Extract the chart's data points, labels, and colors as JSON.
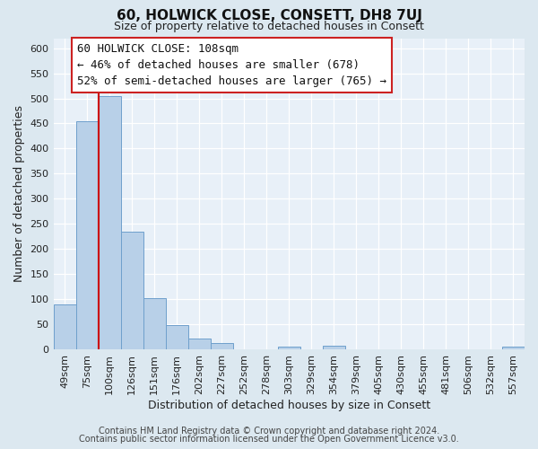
{
  "title": "60, HOLWICK CLOSE, CONSETT, DH8 7UJ",
  "subtitle": "Size of property relative to detached houses in Consett",
  "xlabel": "Distribution of detached houses by size in Consett",
  "ylabel": "Number of detached properties",
  "bin_labels": [
    "49sqm",
    "75sqm",
    "100sqm",
    "126sqm",
    "151sqm",
    "176sqm",
    "202sqm",
    "227sqm",
    "252sqm",
    "278sqm",
    "303sqm",
    "329sqm",
    "354sqm",
    "379sqm",
    "405sqm",
    "430sqm",
    "455sqm",
    "481sqm",
    "506sqm",
    "532sqm",
    "557sqm"
  ],
  "bar_heights": [
    90,
    455,
    505,
    235,
    102,
    48,
    22,
    12,
    0,
    0,
    5,
    0,
    7,
    0,
    0,
    0,
    0,
    0,
    0,
    0,
    5
  ],
  "bar_color": "#b8d0e8",
  "bar_edge_color": "#6fa0cc",
  "vline_x_idx": 2,
  "vline_color": "#cc0000",
  "ylim": [
    0,
    620
  ],
  "yticks": [
    0,
    50,
    100,
    150,
    200,
    250,
    300,
    350,
    400,
    450,
    500,
    550,
    600
  ],
  "annotation_title": "60 HOLWICK CLOSE: 108sqm",
  "annotation_line1": "← 46% of detached houses are smaller (678)",
  "annotation_line2": "52% of semi-detached houses are larger (765) →",
  "footer1": "Contains HM Land Registry data © Crown copyright and database right 2024.",
  "footer2": "Contains public sector information licensed under the Open Government Licence v3.0.",
  "bg_color": "#dce8f0",
  "plot_bg_color": "#e8f0f8",
  "grid_color": "#ffffff",
  "title_fontsize": 11,
  "subtitle_fontsize": 9,
  "xlabel_fontsize": 9,
  "ylabel_fontsize": 9,
  "tick_fontsize": 8,
  "annotation_fontsize": 9,
  "footer_fontsize": 7
}
